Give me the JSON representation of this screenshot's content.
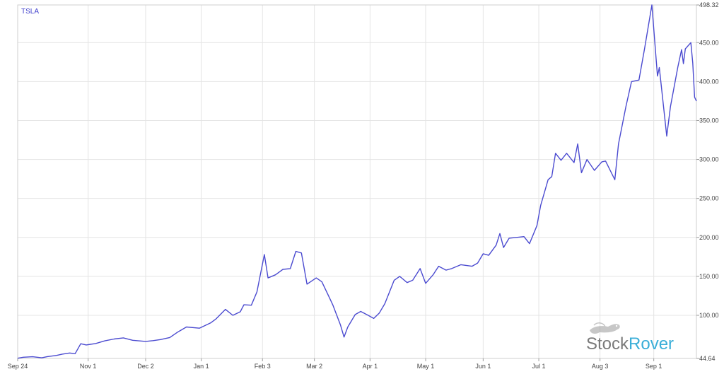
{
  "chart_data": {
    "type": "line",
    "series": [
      {
        "name": "TSLA",
        "color": "#4b4bd0",
        "points": [
          [
            "2019-09-24",
            44.9
          ],
          [
            "2019-09-27",
            46.2
          ],
          [
            "2019-10-02",
            46.8
          ],
          [
            "2019-10-07",
            45.5
          ],
          [
            "2019-10-10",
            47.0
          ],
          [
            "2019-10-15",
            48.5
          ],
          [
            "2019-10-18",
            50.2
          ],
          [
            "2019-10-22",
            51.6
          ],
          [
            "2019-10-25",
            50.8
          ],
          [
            "2019-10-28",
            63.5
          ],
          [
            "2019-10-31",
            62.0
          ],
          [
            "2019-11-05",
            63.8
          ],
          [
            "2019-11-10",
            67.2
          ],
          [
            "2019-11-15",
            69.6
          ],
          [
            "2019-11-20",
            71.0
          ],
          [
            "2019-11-25",
            68.0
          ],
          [
            "2019-12-02",
            66.5
          ],
          [
            "2019-12-06",
            67.5
          ],
          [
            "2019-12-10",
            68.9
          ],
          [
            "2019-12-15",
            71.5
          ],
          [
            "2019-12-19",
            78.0
          ],
          [
            "2019-12-24",
            85.0
          ],
          [
            "2019-12-31",
            83.5
          ],
          [
            "2020-01-06",
            90.2
          ],
          [
            "2020-01-09",
            95.5
          ],
          [
            "2020-01-14",
            107.6
          ],
          [
            "2020-01-18",
            100.0
          ],
          [
            "2020-01-22",
            104.5
          ],
          [
            "2020-01-24",
            113.5
          ],
          [
            "2020-01-28",
            113.0
          ],
          [
            "2020-01-31",
            130.0
          ],
          [
            "2020-02-04",
            178.0
          ],
          [
            "2020-02-06",
            148.0
          ],
          [
            "2020-02-10",
            152.0
          ],
          [
            "2020-02-14",
            159.0
          ],
          [
            "2020-02-18",
            160.0
          ],
          [
            "2020-02-21",
            182.0
          ],
          [
            "2020-02-24",
            180.0
          ],
          [
            "2020-02-27",
            140.0
          ],
          [
            "2020-03-03",
            148.0
          ],
          [
            "2020-03-06",
            143.0
          ],
          [
            "2020-03-10",
            123.0
          ],
          [
            "2020-03-12",
            113.0
          ],
          [
            "2020-03-16",
            88.0
          ],
          [
            "2020-03-18",
            72.0
          ],
          [
            "2020-03-20",
            85.0
          ],
          [
            "2020-03-24",
            101.0
          ],
          [
            "2020-03-27",
            105.0
          ],
          [
            "2020-03-31",
            100.0
          ],
          [
            "2020-04-03",
            96.0
          ],
          [
            "2020-04-06",
            103.0
          ],
          [
            "2020-04-09",
            115.0
          ],
          [
            "2020-04-14",
            145.0
          ],
          [
            "2020-04-17",
            150.0
          ],
          [
            "2020-04-21",
            142.0
          ],
          [
            "2020-04-24",
            145.0
          ],
          [
            "2020-04-28",
            160.0
          ],
          [
            "2020-05-01",
            141.0
          ],
          [
            "2020-05-05",
            152.0
          ],
          [
            "2020-05-08",
            163.0
          ],
          [
            "2020-05-12",
            158.0
          ],
          [
            "2020-05-15",
            160.0
          ],
          [
            "2020-05-20",
            165.0
          ],
          [
            "2020-05-26",
            163.0
          ],
          [
            "2020-05-29",
            167.0
          ],
          [
            "2020-06-01",
            179.0
          ],
          [
            "2020-06-04",
            177.0
          ],
          [
            "2020-06-08",
            190.0
          ],
          [
            "2020-06-10",
            205.0
          ],
          [
            "2020-06-12",
            187.0
          ],
          [
            "2020-06-15",
            199.0
          ],
          [
            "2020-06-19",
            200.0
          ],
          [
            "2020-06-23",
            201.0
          ],
          [
            "2020-06-26",
            192.0
          ],
          [
            "2020-06-30",
            215.0
          ],
          [
            "2020-07-02",
            241.0
          ],
          [
            "2020-07-06",
            274.0
          ],
          [
            "2020-07-08",
            278.0
          ],
          [
            "2020-07-10",
            308.0
          ],
          [
            "2020-07-13",
            299.0
          ],
          [
            "2020-07-16",
            308.0
          ],
          [
            "2020-07-20",
            296.0
          ],
          [
            "2020-07-22",
            320.0
          ],
          [
            "2020-07-24",
            283.0
          ],
          [
            "2020-07-27",
            300.0
          ],
          [
            "2020-07-31",
            286.0
          ],
          [
            "2020-08-04",
            297.0
          ],
          [
            "2020-08-06",
            298.0
          ],
          [
            "2020-08-11",
            274.0
          ],
          [
            "2020-08-13",
            320.0
          ],
          [
            "2020-08-17",
            368.0
          ],
          [
            "2020-08-20",
            400.0
          ],
          [
            "2020-08-24",
            402.0
          ],
          [
            "2020-08-27",
            442.0
          ],
          [
            "2020-08-31",
            498.3
          ],
          [
            "2020-09-03",
            407.0
          ],
          [
            "2020-09-04",
            418.0
          ],
          [
            "2020-09-08",
            330.0
          ],
          [
            "2020-09-10",
            368.0
          ],
          [
            "2020-09-14",
            419.0
          ],
          [
            "2020-09-16",
            441.0
          ],
          [
            "2020-09-17",
            423.0
          ],
          [
            "2020-09-18",
            442.0
          ],
          [
            "2020-09-21",
            450.0
          ],
          [
            "2020-09-22",
            424.0
          ],
          [
            "2020-09-23",
            380.0
          ],
          [
            "2020-09-24",
            375.0
          ]
        ]
      }
    ],
    "x_ticks": [
      {
        "label": "Sep 24",
        "date": "2019-09-24"
      },
      {
        "label": "Nov 1",
        "date": "2019-11-01"
      },
      {
        "label": "Dec 2",
        "date": "2019-12-02"
      },
      {
        "label": "Jan 1",
        "date": "2020-01-01"
      },
      {
        "label": "Feb 3",
        "date": "2020-02-03"
      },
      {
        "label": "Mar 2",
        "date": "2020-03-02"
      },
      {
        "label": "Apr 1",
        "date": "2020-04-01"
      },
      {
        "label": "May 1",
        "date": "2020-05-01"
      },
      {
        "label": "Jun 1",
        "date": "2020-06-01"
      },
      {
        "label": "Jul 1",
        "date": "2020-07-01"
      },
      {
        "label": "Aug 3",
        "date": "2020-08-03"
      },
      {
        "label": "Sep 1",
        "date": "2020-09-01"
      }
    ],
    "y_ticks": [
      {
        "label": "44.64",
        "value": 44.64
      },
      {
        "label": "100.00",
        "value": 100
      },
      {
        "label": "150.00",
        "value": 150
      },
      {
        "label": "200.00",
        "value": 200
      },
      {
        "label": "250.00",
        "value": 250
      },
      {
        "label": "300.00",
        "value": 300
      },
      {
        "label": "350.00",
        "value": 350
      },
      {
        "label": "400.00",
        "value": 400
      },
      {
        "label": "450.00",
        "value": 450
      },
      {
        "label": "498.32",
        "value": 498.32
      }
    ],
    "xlim": [
      "2019-09-24",
      "2020-09-24"
    ],
    "ylim": [
      44.64,
      498.32
    ],
    "y_axis_side": "right",
    "grid": true,
    "title": "",
    "xlabel": "",
    "ylabel": ""
  },
  "branding": {
    "logo_text_part1": "Stock",
    "logo_text_part2": "Rover",
    "logo_icon": "dog-icon",
    "color_part1": "#7a7a7a",
    "color_part2": "#3aaed8"
  }
}
